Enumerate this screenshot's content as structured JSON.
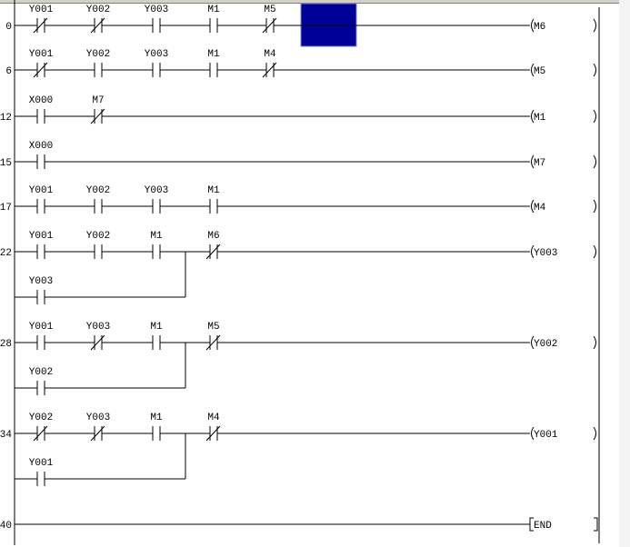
{
  "editor": {
    "cursor_color": "#000099",
    "rail_color": "#000000",
    "rungs": [
      {
        "step": "0",
        "contacts": [
          {
            "label": "Y001",
            "type": "NC"
          },
          {
            "label": "Y002",
            "type": "NC"
          },
          {
            "label": "Y003",
            "type": "NO"
          },
          {
            "label": "M1",
            "type": "NO"
          },
          {
            "label": "M5",
            "type": "NC"
          }
        ],
        "coil": "M6",
        "coil_type": "out"
      },
      {
        "step": "6",
        "contacts": [
          {
            "label": "Y001",
            "type": "NC"
          },
          {
            "label": "Y002",
            "type": "NO"
          },
          {
            "label": "Y003",
            "type": "NO"
          },
          {
            "label": "M1",
            "type": "NO"
          },
          {
            "label": "M4",
            "type": "NC"
          }
        ],
        "coil": "M5",
        "coil_type": "out"
      },
      {
        "step": "12",
        "contacts": [
          {
            "label": "X000",
            "type": "NO"
          },
          {
            "label": "M7",
            "type": "NC"
          }
        ],
        "coil": "M1",
        "coil_type": "out"
      },
      {
        "step": "15",
        "contacts": [
          {
            "label": "X000",
            "type": "NO"
          }
        ],
        "coil": "M7",
        "coil_type": "out"
      },
      {
        "step": "17",
        "contacts": [
          {
            "label": "Y001",
            "type": "NO"
          },
          {
            "label": "Y002",
            "type": "NO"
          },
          {
            "label": "Y003",
            "type": "NO"
          },
          {
            "label": "M1",
            "type": "NO"
          }
        ],
        "coil": "M4",
        "coil_type": "out"
      },
      {
        "step": "22",
        "contacts": [
          {
            "label": "Y001",
            "type": "NO"
          },
          {
            "label": "Y002",
            "type": "NO"
          },
          {
            "label": "M1",
            "type": "NO"
          },
          {
            "label": "M6",
            "type": "NC"
          }
        ],
        "branch": {
          "label": "Y003",
          "type": "NO"
        },
        "coil": "Y003",
        "coil_type": "out"
      },
      {
        "step": "28",
        "contacts": [
          {
            "label": "Y001",
            "type": "NO"
          },
          {
            "label": "Y003",
            "type": "NC"
          },
          {
            "label": "M1",
            "type": "NO"
          },
          {
            "label": "M5",
            "type": "NC"
          }
        ],
        "branch": {
          "label": "Y002",
          "type": "NO"
        },
        "coil": "Y002",
        "coil_type": "out"
      },
      {
        "step": "34",
        "contacts": [
          {
            "label": "Y002",
            "type": "NC"
          },
          {
            "label": "Y003",
            "type": "NC"
          },
          {
            "label": "M1",
            "type": "NO"
          },
          {
            "label": "M4",
            "type": "NC"
          }
        ],
        "branch": {
          "label": "Y001",
          "type": "NO"
        },
        "coil": "Y001",
        "coil_type": "out"
      },
      {
        "step": "40",
        "contacts": [],
        "coil": "END",
        "coil_type": "instr"
      }
    ]
  }
}
